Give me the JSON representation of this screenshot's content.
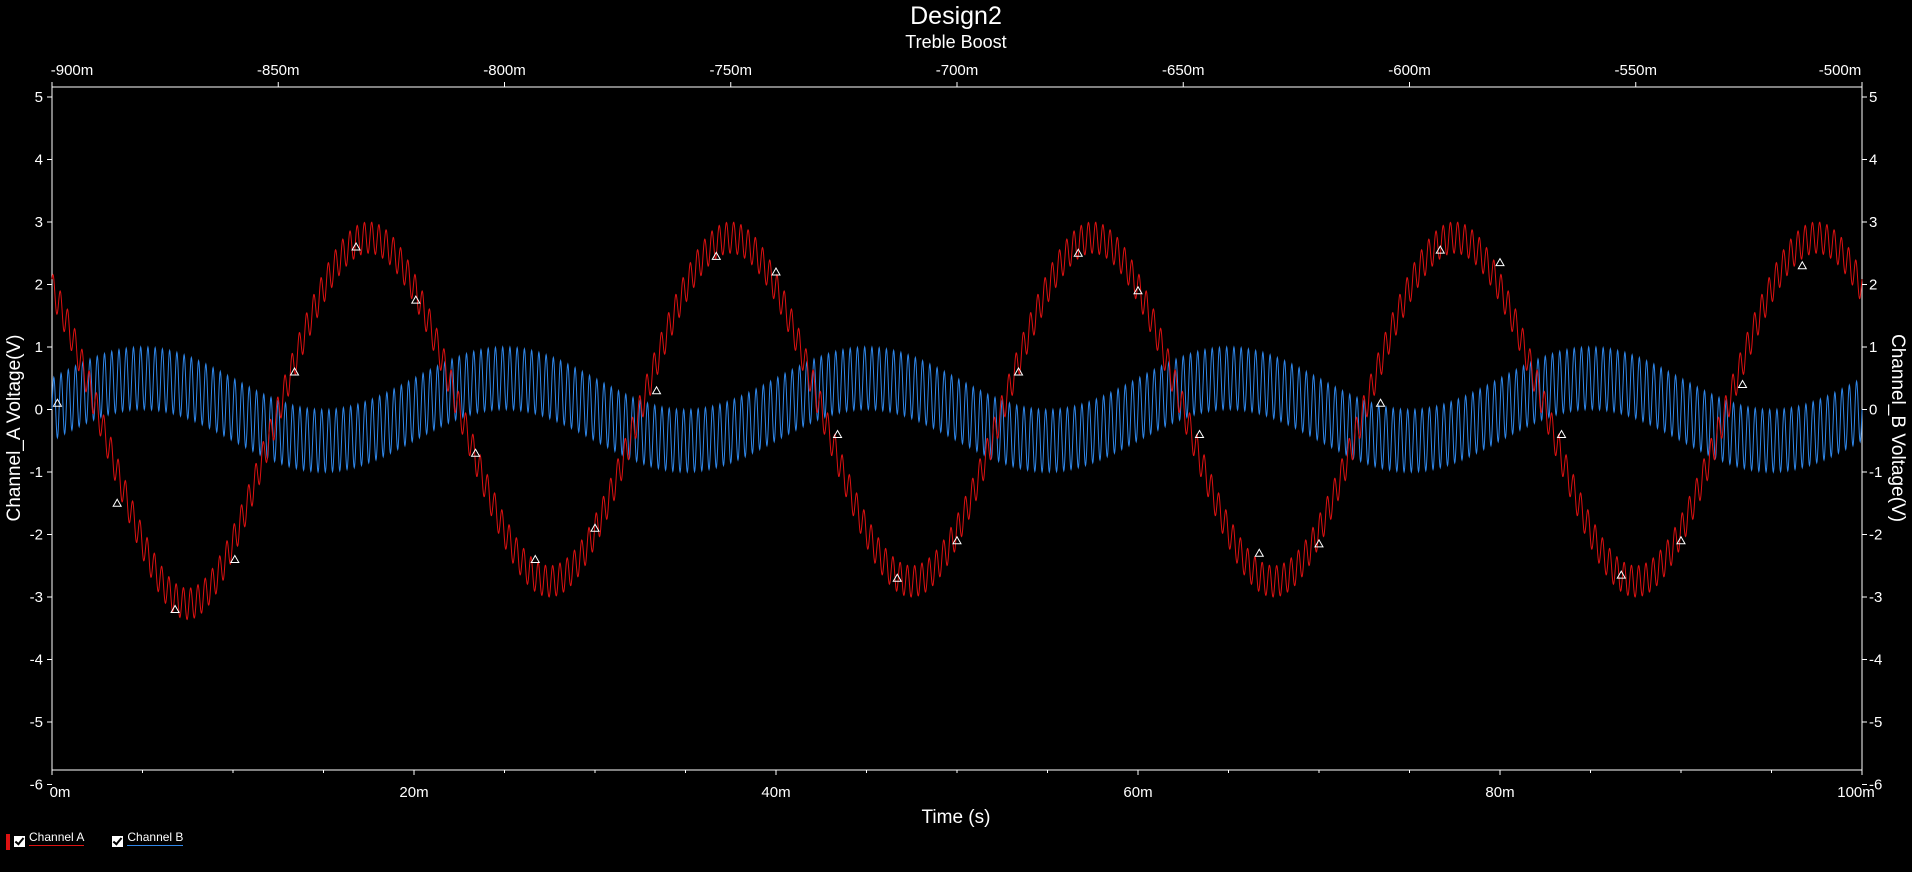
{
  "chart_data": {
    "type": "line",
    "title": "Design2",
    "subtitle": "Treble Boost",
    "xlabel": "Time (s)",
    "ylabel_left": "Channel_A Voltage(V)",
    "ylabel_right": "Channel_B Voltage(V)",
    "xlim": [
      0,
      100
    ],
    "top_xlim": [
      -900,
      -500
    ],
    "ylim": [
      -6,
      5
    ],
    "x_ticks": [
      "0m",
      "20m",
      "40m",
      "60m",
      "80m",
      "100m"
    ],
    "top_x_ticks": [
      "-900m",
      "-850m",
      "-800m",
      "-750m",
      "-700m",
      "-650m",
      "-600m",
      "-550m",
      "-500m"
    ],
    "y_ticks": [
      "5",
      "4",
      "3",
      "2",
      "1",
      "0",
      "-1",
      "-2",
      "-3",
      "-4",
      "-5",
      "-6"
    ],
    "grid": false,
    "legend_position": "bottom-left",
    "background": "#000000",
    "series": [
      {
        "name": "Channel A",
        "color": "#dd1111",
        "description_values": {
          "base_wave": "sine, period 20m, amplitude ~2.75V, phase inverted (minimum near 7.5m)",
          "ripple_amplitude": 0.25,
          "extrema": [
            [
              7.5,
              -3.1
            ],
            [
              17.8,
              2.65
            ],
            [
              27.8,
              -2.7
            ],
            [
              37.8,
              2.7
            ],
            [
              47.8,
              -2.75
            ],
            [
              57.8,
              2.7
            ],
            [
              67.8,
              -2.7
            ],
            [
              77.8,
              2.7
            ],
            [
              87.8,
              -2.7
            ],
            [
              97.8,
              2.65
            ]
          ]
        },
        "markers": [
          [
            0.3,
            0.1
          ],
          [
            3.6,
            -1.5
          ],
          [
            6.8,
            -3.2
          ],
          [
            10.1,
            -2.4
          ],
          [
            13.4,
            0.6
          ],
          [
            16.8,
            2.6
          ],
          [
            20.1,
            1.75
          ],
          [
            23.4,
            -0.7
          ],
          [
            26.7,
            -2.4
          ],
          [
            30.0,
            -1.9
          ],
          [
            33.4,
            0.3
          ],
          [
            36.7,
            2.45
          ],
          [
            40.0,
            2.2
          ],
          [
            43.4,
            -0.4
          ],
          [
            46.7,
            -2.7
          ],
          [
            50.0,
            -2.1
          ],
          [
            53.4,
            0.6
          ],
          [
            56.7,
            2.5
          ],
          [
            60.0,
            1.9
          ],
          [
            63.4,
            -0.4
          ],
          [
            66.7,
            -2.3
          ],
          [
            70.0,
            -2.15
          ],
          [
            73.4,
            0.1
          ],
          [
            76.7,
            2.55
          ],
          [
            80.0,
            2.35
          ],
          [
            83.4,
            -0.4
          ],
          [
            86.7,
            -2.65
          ],
          [
            90.0,
            -2.1
          ],
          [
            93.4,
            0.4
          ],
          [
            96.7,
            2.3
          ]
        ]
      },
      {
        "name": "Channel B",
        "color": "#2f86e8",
        "description_values": {
          "base_wave": "sine, period 20m, amplitude ~0.5V, peak near 5m",
          "ripple_amplitude": 0.5,
          "envelope_max": 1.0,
          "envelope_min": -1.0
        }
      }
    ]
  },
  "legend": [
    {
      "label": "Channel A",
      "color": "#dd1111",
      "checked": true
    },
    {
      "label": "Channel B",
      "color": "#2f86e8",
      "checked": true
    }
  ]
}
